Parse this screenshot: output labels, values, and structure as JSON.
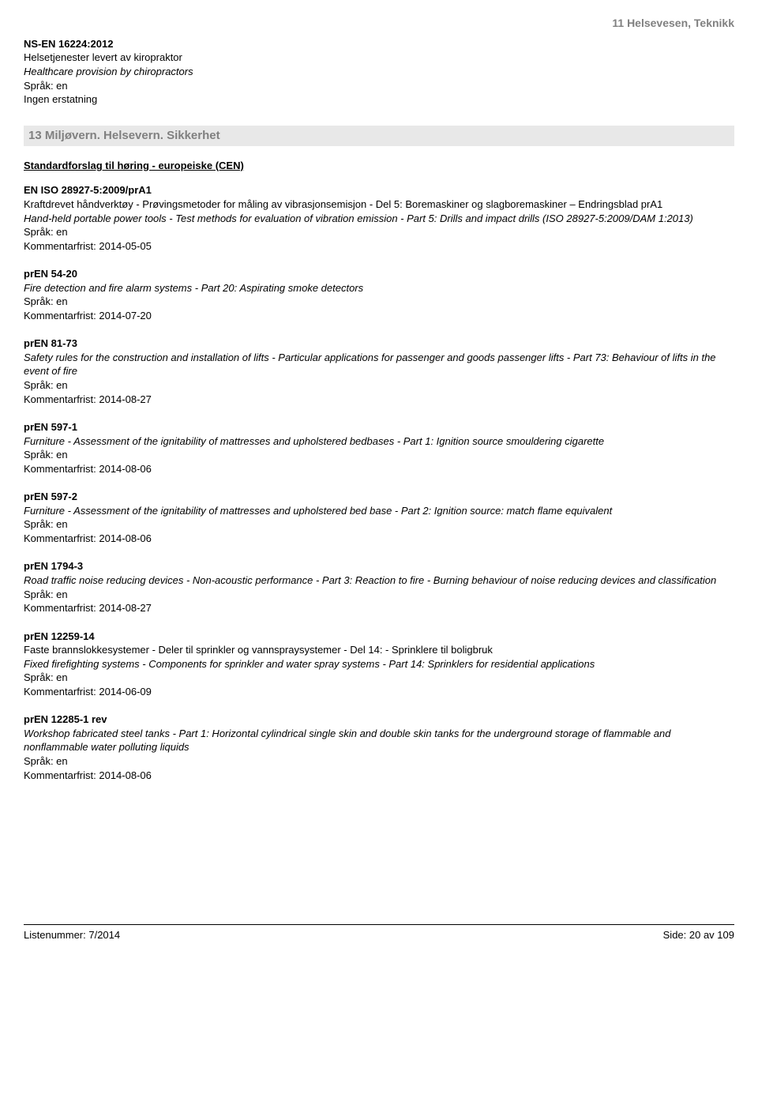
{
  "topRightHeader": "11  Helsevesen, Teknikk",
  "preEntry": {
    "code": "NS-EN 16224:2012",
    "norwegian": "Helsetjenester levert av kiropraktor",
    "english": "Healthcare provision by chiropractors",
    "lang": "Språk: en",
    "replace": "Ingen erstatning"
  },
  "sectionHeading": "13  Miljøvern. Helsevern. Sikkerhet",
  "subheading": "Standardforslag til høring - europeiske (CEN)",
  "entries": [
    {
      "code": "EN ISO 28927-5:2009/prA1",
      "norwegian": "Kraftdrevet håndverktøy - Prøvingsmetoder for måling av vibrasjonsemisjon - Del 5: Boremaskiner og slagboremaskiner – Endringsblad prA1",
      "english": "Hand-held portable power tools - Test methods for evaluation of vibration emission - Part 5: Drills and impact drills (ISO 28927-5:2009/DAM 1:2013)",
      "lang": "Språk: en",
      "deadline": "Kommentarfrist: 2014-05-05"
    },
    {
      "code": "prEN 54-20",
      "english": "Fire detection and fire alarm systems - Part 20: Aspirating smoke detectors",
      "lang": "Språk: en",
      "deadline": "Kommentarfrist: 2014-07-20"
    },
    {
      "code": "prEN 81-73",
      "english": "Safety rules for the construction and installation of lifts - Particular applications for passenger and goods passenger lifts - Part 73: Behaviour of lifts in the event of fire",
      "lang": "Språk: en",
      "deadline": "Kommentarfrist: 2014-08-27"
    },
    {
      "code": "prEN 597-1",
      "english": "Furniture - Assessment of the ignitability of mattresses and upholstered bedbases - Part 1: Ignition source smouldering cigarette",
      "lang": "Språk: en",
      "deadline": "Kommentarfrist: 2014-08-06"
    },
    {
      "code": "prEN 597-2",
      "english": "Furniture - Assessment of the ignitability of mattresses and upholstered bed base - Part 2: Ignition source: match flame equivalent",
      "lang": "Språk: en",
      "deadline": "Kommentarfrist: 2014-08-06"
    },
    {
      "code": "prEN 1794-3",
      "english": "Road traffic noise reducing devices - Non-acoustic performance - Part 3: Reaction to fire - Burning behaviour of noise reducing devices and classification",
      "lang": "Språk: en",
      "deadline": "Kommentarfrist: 2014-08-27"
    },
    {
      "code": "prEN 12259-14",
      "norwegian": "Faste brannslokkesystemer - Deler til sprinkler og vannspraysystemer - Del 14: - Sprinklere til boligbruk",
      "english": "Fixed firefighting systems - Components for sprinkler and water spray systems - Part 14: Sprinklers for residential applications",
      "lang": "Språk: en",
      "deadline": "Kommentarfrist: 2014-06-09"
    },
    {
      "code": "prEN 12285-1 rev",
      "english": "Workshop fabricated steel tanks - Part 1: Horizontal cylindrical single skin and double skin tanks for the underground storage of flammable and nonflammable water polluting liquids",
      "lang": "Språk: en",
      "deadline": "Kommentarfrist: 2014-08-06"
    }
  ],
  "footer": {
    "left": "Listenummer: 7/2014",
    "right": "Side: 20 av 109"
  }
}
